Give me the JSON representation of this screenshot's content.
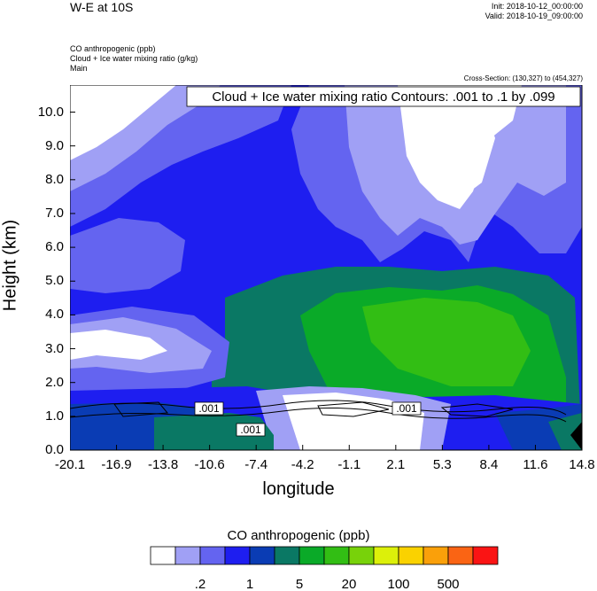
{
  "header": {
    "title": "W-E at 10S",
    "init": "Init: 2018-10-12_00:00:00",
    "valid": "Valid: 2018-10-19_09:00:00",
    "subtitle_lines": [
      "CO anthropogenic   (ppb)",
      "Cloud + Ice water mixing ratio   (g/kg)",
      "Main"
    ],
    "cross_section": "Cross-Section: (130,327) to (454,327)",
    "contour_info": "Cloud + Ice water mixing ratio Contours: .001 to .1 by .099"
  },
  "chart_data": {
    "type": "heatmap",
    "xlabel": "longitude",
    "ylabel": "Height (km)",
    "x_ticks": [
      "-20.1",
      "-16.9",
      "-13.8",
      "-10.6",
      "-7.4",
      "-4.2",
      "-1.1",
      "2.1",
      "5.3",
      "8.4",
      "11.6",
      "14.8"
    ],
    "y_ticks": [
      "0.0",
      "1.0",
      "2.0",
      "3.0",
      "4.0",
      "5.0",
      "6.0",
      "7.0",
      "8.0",
      "9.0",
      "10.0"
    ],
    "xlim": [
      -20.1,
      14.8
    ],
    "ylim": [
      0,
      10.8
    ],
    "contour_labels": [
      ".001",
      ".001",
      ".001"
    ],
    "colorbar": {
      "title": "CO anthropogenic  (ppb)",
      "colors": [
        "#ffffff",
        "#a0a0f5",
        "#6464f0",
        "#1e1ef0",
        "#0a3cb4",
        "#0a7864",
        "#0aaa28",
        "#32be14",
        "#78d20a",
        "#dcf00a",
        "#fad200",
        "#faa00a",
        "#fa6414",
        "#fa1414"
      ],
      "labels": [
        ".2",
        "1",
        "5",
        "20",
        "100",
        "500"
      ]
    }
  }
}
